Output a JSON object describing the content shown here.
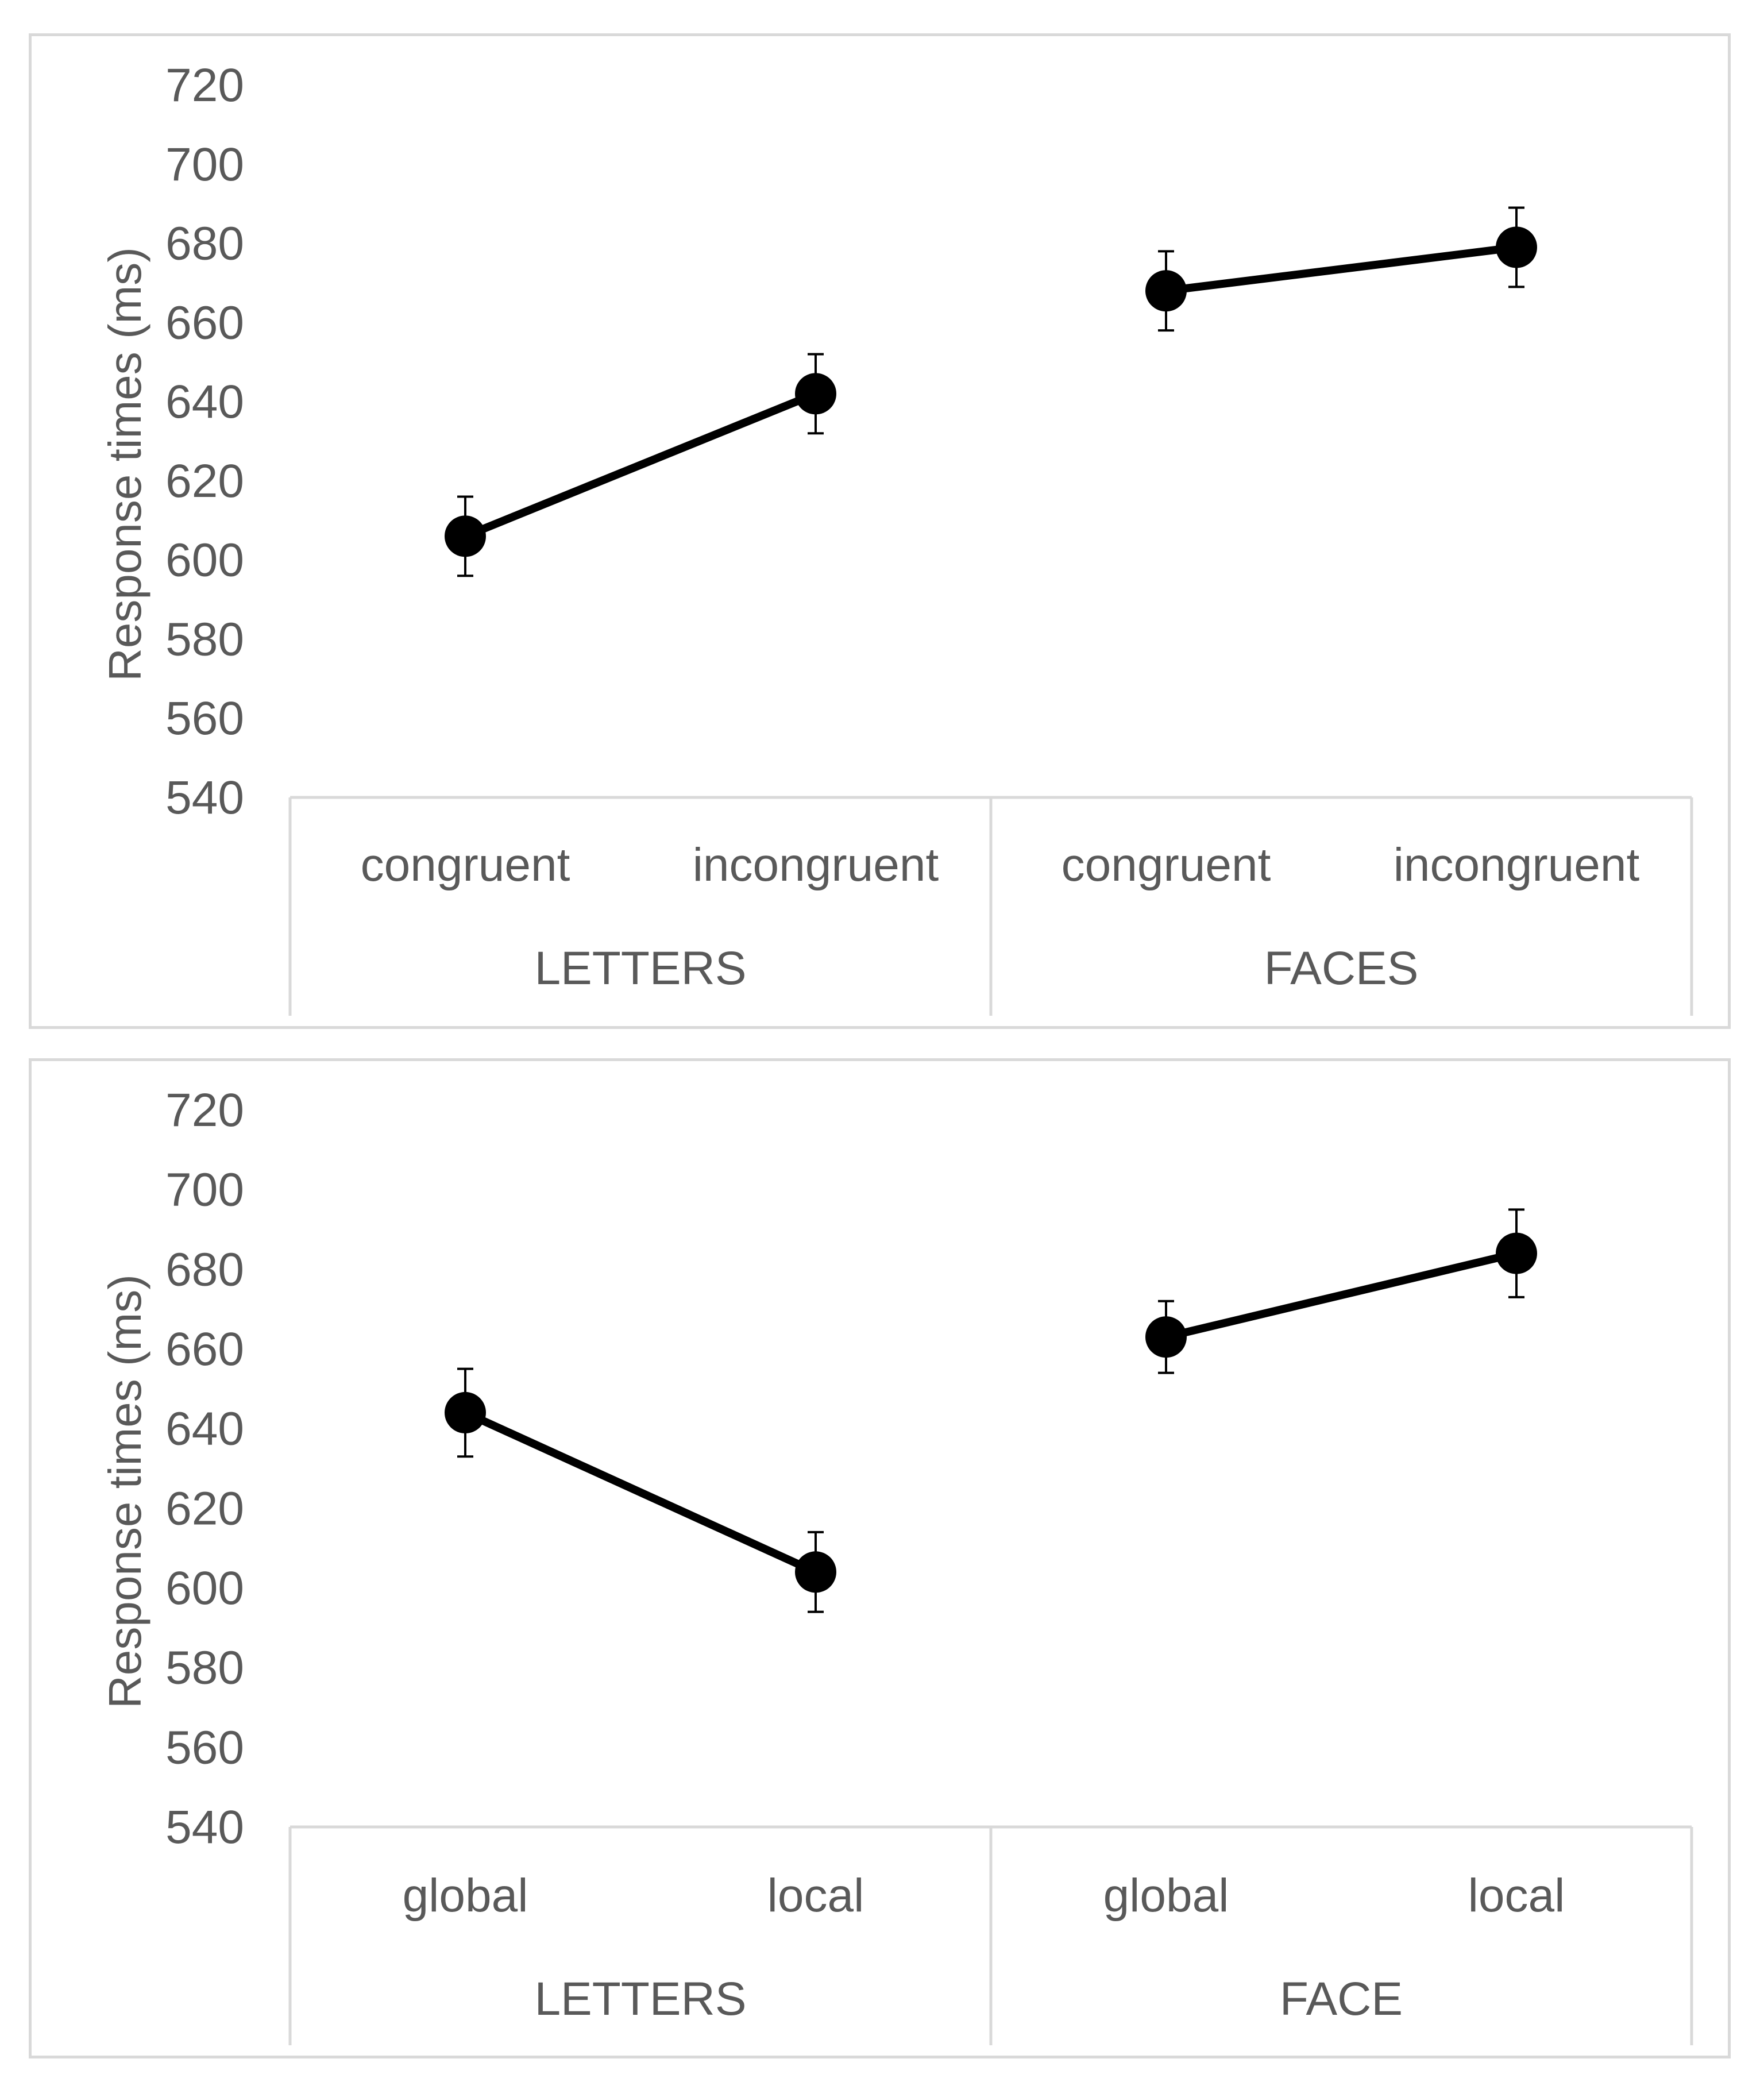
{
  "chart_data": [
    {
      "type": "line",
      "ylabel": "Response times (ms)",
      "ylim": [
        540,
        720
      ],
      "yticks": [
        540,
        560,
        580,
        600,
        620,
        640,
        660,
        680,
        700,
        720
      ],
      "grid": false,
      "legend": "none",
      "groups": [
        {
          "label": "LETTERS",
          "categories": [
            "congruent",
            "incongruent"
          ],
          "values": [
            606,
            642
          ],
          "errors": [
            10,
            10
          ]
        },
        {
          "label": "FACES",
          "categories": [
            "congruent",
            "incongruent"
          ],
          "values": [
            668,
            679
          ],
          "errors": [
            10,
            10
          ]
        }
      ],
      "line_color": "#000000"
    },
    {
      "type": "line",
      "ylabel": "Response times (ms)",
      "ylim": [
        540,
        720
      ],
      "yticks": [
        540,
        560,
        580,
        600,
        620,
        640,
        660,
        680,
        700,
        720
      ],
      "grid": false,
      "legend": "none",
      "groups": [
        {
          "label": "LETTERS",
          "categories": [
            "global",
            "local"
          ],
          "values": [
            644,
            604
          ],
          "errors": [
            11,
            10
          ]
        },
        {
          "label": "FACE",
          "categories": [
            "global",
            "local"
          ],
          "values": [
            663,
            684
          ],
          "errors": [
            9,
            11
          ]
        }
      ],
      "line_color": "#000000"
    }
  ]
}
